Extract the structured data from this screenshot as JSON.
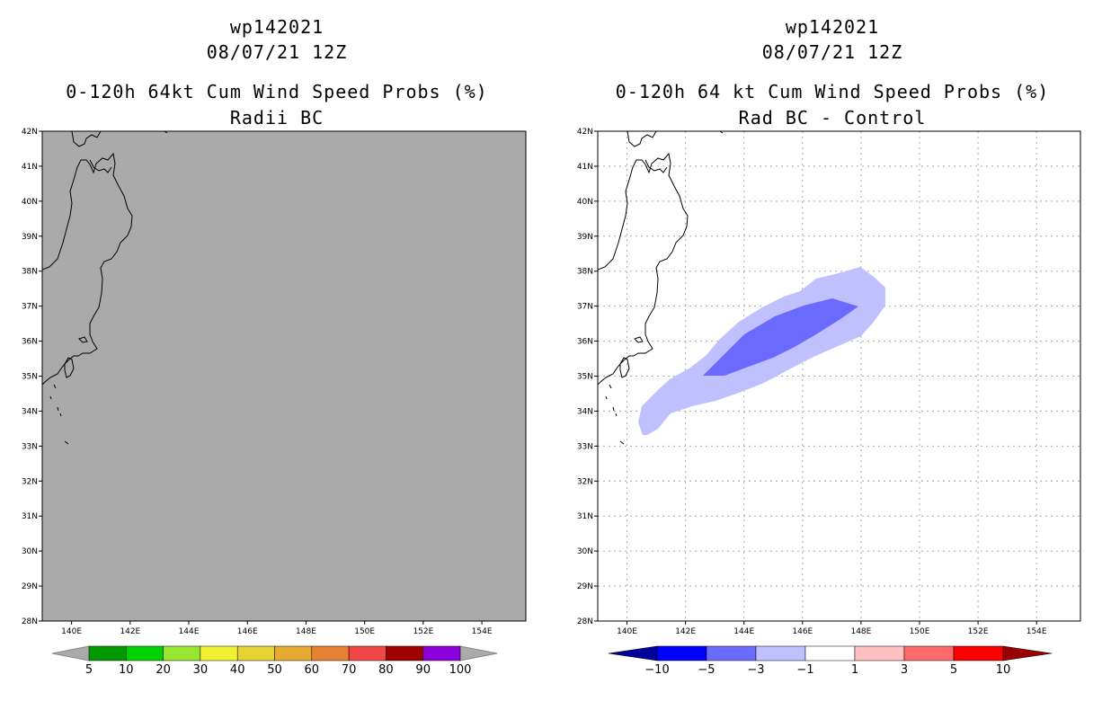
{
  "left_panel": {
    "storm_id": "wp142021",
    "datetime": "08/07/21 12Z",
    "title": "0-120h 64kt Cum Wind Speed Probs (%)",
    "subtitle": "Radii BC",
    "background_color": "#aaaaaa"
  },
  "right_panel": {
    "storm_id": "wp142021",
    "datetime": "08/07/21 12Z",
    "title": "0-120h 64 kt Cum Wind Speed Probs (%)",
    "subtitle": "Rad BC - Control",
    "background_color": "#ffffff"
  },
  "map": {
    "lat_range": [
      28,
      42
    ],
    "lon_range": [
      139.0,
      155.5
    ],
    "lat_labels": [
      "42N",
      "41N",
      "40N",
      "39N",
      "38N",
      "37N",
      "36N",
      "35N",
      "34N",
      "33N",
      "32N",
      "31N",
      "30N",
      "29N",
      "28N"
    ],
    "lon_labels": [
      "140E",
      "142E",
      "144E",
      "146E",
      "148E",
      "150E",
      "152E",
      "154E"
    ]
  },
  "left_colorbar": {
    "labels": [
      "5",
      "10",
      "20",
      "30",
      "40",
      "50",
      "60",
      "70",
      "80",
      "90",
      "100"
    ],
    "colors": [
      "#009a00",
      "#00d200",
      "#96e632",
      "#f0f032",
      "#e6d232",
      "#e6aa32",
      "#e68232",
      "#f04646",
      "#a00000",
      "#8c00dc"
    ],
    "end_color": "#aaaaaa"
  },
  "right_colorbar": {
    "labels": [
      "-10",
      "-5",
      "-3",
      "-1",
      "1",
      "3",
      "5",
      "10"
    ],
    "colors": [
      "#00009a",
      "#0000ff",
      "#6a6aff",
      "#c0c0ff",
      "#ffffff",
      "#ffc0c0",
      "#ff6a6a",
      "#ff0000",
      "#9a0000"
    ]
  },
  "difference_field": {
    "variable": "64 kt cumulative wind speed probability difference (Rad BC - Control)",
    "outer_contour_level": "-3 to -1",
    "inner_contour_level": "-5 to -3"
  },
  "icons": [
    "coastline-japan",
    "colorbar-left-arrow",
    "colorbar-right-arrow"
  ]
}
